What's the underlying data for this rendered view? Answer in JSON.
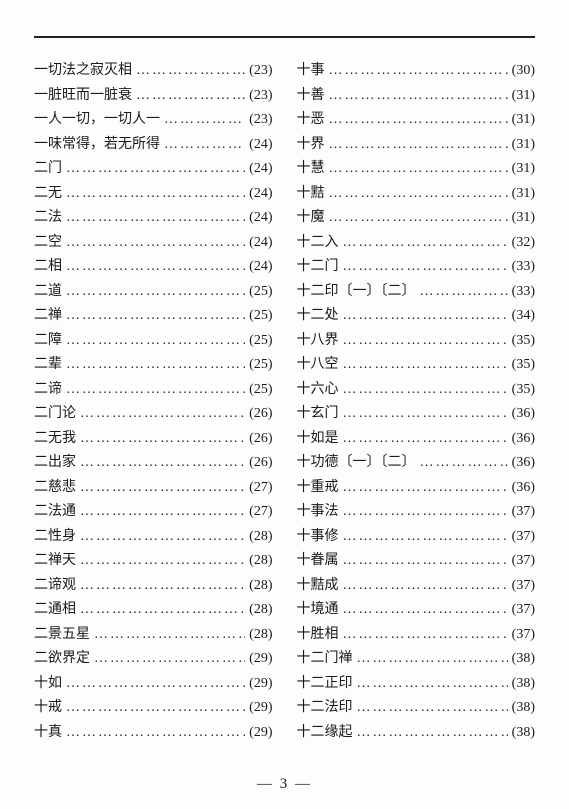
{
  "page_number": "3",
  "leader_glyph": "…",
  "left": [
    {
      "term": "一切法之寂灭相",
      "page": "(23)"
    },
    {
      "term": "一脏旺而一脏衰",
      "page": "(23)"
    },
    {
      "term": "一人一切，一切人一",
      "page": "(23)"
    },
    {
      "term": "一味常得，若无所得",
      "page": "(24)"
    },
    {
      "term": "二门",
      "page": "(24)"
    },
    {
      "term": "二无",
      "page": "(24)"
    },
    {
      "term": "二法",
      "page": "(24)"
    },
    {
      "term": "二空",
      "page": "(24)"
    },
    {
      "term": "二相",
      "page": "(24)"
    },
    {
      "term": "二道",
      "page": "(25)"
    },
    {
      "term": "二禅",
      "page": "(25)"
    },
    {
      "term": "二障",
      "page": "(25)"
    },
    {
      "term": "二辈",
      "page": "(25)"
    },
    {
      "term": "二谛",
      "page": "(25)"
    },
    {
      "term": "二门论",
      "page": "(26)"
    },
    {
      "term": "二无我",
      "page": "(26)"
    },
    {
      "term": "二出家",
      "page": "(26)"
    },
    {
      "term": "二慈悲",
      "page": "(27)"
    },
    {
      "term": "二法通",
      "page": "(27)"
    },
    {
      "term": "二性身",
      "page": "(28)"
    },
    {
      "term": "二禅天",
      "page": "(28)"
    },
    {
      "term": "二谛观",
      "page": "(28)"
    },
    {
      "term": "二通相",
      "page": "(28)"
    },
    {
      "term": "二景五星",
      "page": "(28)"
    },
    {
      "term": "二欲界定",
      "page": "(29)"
    },
    {
      "term": "十如",
      "page": "(29)"
    },
    {
      "term": "十戒",
      "page": "(29)"
    },
    {
      "term": "十真",
      "page": "(29)"
    }
  ],
  "right": [
    {
      "term": "十事",
      "page": "(30)"
    },
    {
      "term": "十善",
      "page": "(31)"
    },
    {
      "term": "十恶",
      "page": "(31)"
    },
    {
      "term": "十界",
      "page": "(31)"
    },
    {
      "term": "十慧",
      "page": "(31)"
    },
    {
      "term": "十黠",
      "page": "(31)"
    },
    {
      "term": "十魔",
      "page": "(31)"
    },
    {
      "term": "十二入",
      "page": "(32)"
    },
    {
      "term": "十二门",
      "page": "(33)"
    },
    {
      "term": "十二印〔一〕〔二〕",
      "page": "(33)"
    },
    {
      "term": "十二处",
      "page": "(34)"
    },
    {
      "term": "十八界",
      "page": "(35)"
    },
    {
      "term": "十八空",
      "page": "(35)"
    },
    {
      "term": "十六心",
      "page": "(35)"
    },
    {
      "term": "十玄门",
      "page": "(36)"
    },
    {
      "term": "十如是",
      "page": "(36)"
    },
    {
      "term": "十功德〔一〕〔二〕",
      "page": "(36)"
    },
    {
      "term": "十重戒",
      "page": "(36)"
    },
    {
      "term": "十事法",
      "page": "(37)"
    },
    {
      "term": "十事修",
      "page": "(37)"
    },
    {
      "term": "十眷属",
      "page": "(37)"
    },
    {
      "term": "十黠成",
      "page": "(37)"
    },
    {
      "term": "十境通",
      "page": "(37)"
    },
    {
      "term": "十胜相",
      "page": "(37)"
    },
    {
      "term": "十二门禅",
      "page": "(38)"
    },
    {
      "term": "十二正印",
      "page": "(38)"
    },
    {
      "term": "十二法印",
      "page": "(38)"
    },
    {
      "term": "十二缘起",
      "page": "(38)"
    }
  ]
}
